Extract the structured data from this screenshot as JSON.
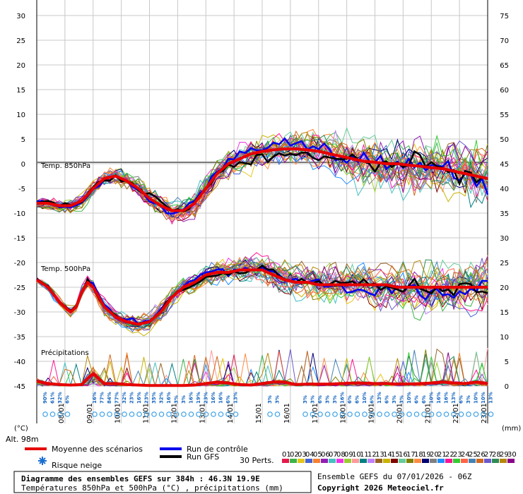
{
  "chart_data": {
    "type": "line",
    "title": "Diagramme des ensembles GEFS sur 384h : 46.3N 19.9E",
    "subtitle": "Températures 850hPa et 500hPa (°C) , précipitations (mm)",
    "source": "Ensemble GEFS du 07/01/2026 - 06Z",
    "copyright": "Copyright 2026 Meteociel.fr",
    "left_axis": {
      "label": "(°C)",
      "range": [
        -45,
        30
      ],
      "ticks": [
        "30",
        "25",
        "20",
        "15",
        "10",
        "5",
        "0",
        "-5",
        "-10",
        "-15",
        "-20",
        "-25",
        "-30",
        "-35",
        "-40",
        "-45"
      ]
    },
    "right_axis": {
      "label": "(mm)",
      "range": [
        0,
        75
      ],
      "ticks": [
        "75",
        "70",
        "65",
        "60",
        "55",
        "50",
        "45",
        "40",
        "35",
        "30",
        "25",
        "20",
        "15",
        "10",
        "5",
        "0"
      ]
    },
    "altitude": "Alt. 98m",
    "x_labels": [
      "08/01",
      "09/01",
      "10/01",
      "11/01",
      "12/01",
      "13/01",
      "14/01",
      "15/01",
      "16/01",
      "17/01",
      "18/01",
      "19/01",
      "20/01",
      "21/01",
      "22/01",
      "23/01"
    ],
    "panel_labels": {
      "t850": "Temp. 850hPa",
      "t500": "Temp. 500hPa",
      "precip": "Précipitations"
    },
    "t850_mean": [
      [
        0,
        -8
      ],
      [
        4,
        -8
      ],
      [
        8,
        -8.5
      ],
      [
        12,
        -8.5
      ],
      [
        16,
        -7.5
      ],
      [
        20,
        -5
      ],
      [
        24,
        -3
      ],
      [
        28,
        -2.5
      ],
      [
        32,
        -3.5
      ],
      [
        36,
        -5
      ],
      [
        40,
        -7
      ],
      [
        44,
        -8.5
      ],
      [
        48,
        -9.5
      ],
      [
        52,
        -9.5
      ],
      [
        56,
        -8
      ],
      [
        60,
        -5
      ],
      [
        64,
        -2
      ],
      [
        68,
        0
      ],
      [
        72,
        1
      ],
      [
        76,
        2
      ],
      [
        80,
        2.5
      ],
      [
        84,
        2.8
      ],
      [
        88,
        3
      ],
      [
        92,
        3
      ],
      [
        96,
        2.8
      ],
      [
        100,
        2.5
      ],
      [
        104,
        2
      ],
      [
        108,
        1.5
      ],
      [
        112,
        1
      ],
      [
        116,
        0.5
      ],
      [
        120,
        0.3
      ],
      [
        124,
        0
      ],
      [
        128,
        0
      ],
      [
        132,
        -0.3
      ],
      [
        136,
        -0.5
      ],
      [
        140,
        -0.8
      ],
      [
        144,
        -1
      ],
      [
        148,
        -1.5
      ],
      [
        152,
        -2
      ],
      [
        156,
        -2.5
      ],
      [
        160,
        -3
      ]
    ],
    "t500_mean": [
      [
        0,
        -23.5
      ],
      [
        4,
        -25
      ],
      [
        8,
        -28
      ],
      [
        12,
        -30
      ],
      [
        14,
        -29
      ],
      [
        16,
        -26
      ],
      [
        18,
        -24
      ],
      [
        20,
        -25
      ],
      [
        24,
        -29
      ],
      [
        28,
        -31
      ],
      [
        32,
        -32
      ],
      [
        36,
        -32.5
      ],
      [
        40,
        -32
      ],
      [
        44,
        -30
      ],
      [
        48,
        -27
      ],
      [
        52,
        -25
      ],
      [
        56,
        -24
      ],
      [
        60,
        -22.5
      ],
      [
        64,
        -22
      ],
      [
        68,
        -22
      ],
      [
        72,
        -21.5
      ],
      [
        76,
        -21.5
      ],
      [
        80,
        -21.5
      ],
      [
        84,
        -22.5
      ],
      [
        88,
        -23.5
      ],
      [
        92,
        -24
      ],
      [
        96,
        -24
      ],
      [
        100,
        -24.5
      ],
      [
        104,
        -24.5
      ],
      [
        108,
        -24.5
      ],
      [
        112,
        -24.5
      ],
      [
        116,
        -24.5
      ],
      [
        120,
        -24.5
      ],
      [
        124,
        -24.5
      ],
      [
        128,
        -25
      ],
      [
        132,
        -25
      ],
      [
        136,
        -25
      ],
      [
        140,
        -25
      ],
      [
        144,
        -25
      ],
      [
        148,
        -25
      ],
      [
        152,
        -25
      ],
      [
        156,
        -25
      ],
      [
        160,
        -25
      ]
    ],
    "precip_mean": [
      [
        0,
        1
      ],
      [
        4,
        0.5
      ],
      [
        8,
        0.3
      ],
      [
        12,
        0.2
      ],
      [
        16,
        0.3
      ],
      [
        18,
        1.5
      ],
      [
        20,
        2.5
      ],
      [
        22,
        1.5
      ],
      [
        24,
        0.5
      ],
      [
        28,
        0.5
      ],
      [
        32,
        0.3
      ],
      [
        36,
        0.2
      ],
      [
        40,
        0.1
      ],
      [
        44,
        0.1
      ],
      [
        48,
        0.1
      ],
      [
        52,
        0.1
      ],
      [
        56,
        0.2
      ],
      [
        60,
        0.5
      ],
      [
        64,
        0.8
      ],
      [
        68,
        0.6
      ],
      [
        72,
        0.3
      ],
      [
        76,
        0.2
      ],
      [
        80,
        0.5
      ],
      [
        84,
        0.8
      ],
      [
        88,
        0.8
      ],
      [
        92,
        0.3
      ],
      [
        96,
        0.4
      ],
      [
        100,
        0.4
      ],
      [
        104,
        0.4
      ],
      [
        108,
        0.5
      ],
      [
        112,
        0.6
      ],
      [
        116,
        0.6
      ],
      [
        120,
        0.5
      ],
      [
        124,
        0.5
      ],
      [
        128,
        0.4
      ],
      [
        132,
        0.4
      ],
      [
        136,
        0.5
      ],
      [
        140,
        0.6
      ],
      [
        144,
        0.8
      ],
      [
        148,
        0.6
      ],
      [
        152,
        0.5
      ],
      [
        156,
        0.8
      ],
      [
        160,
        0.5
      ]
    ],
    "snow_risk": [
      [
        "90%",
        "61%",
        "32%",
        "6%"
      ],
      [
        "16%",
        "77%",
        "84%",
        "77%",
        "32%",
        "23%",
        "16%",
        "23%",
        "35%",
        "32%",
        "16%",
        "3%",
        "3%",
        "16%",
        "19%",
        "23%",
        "16%",
        "16%",
        "6%",
        "13%"
      ],
      [
        "3%",
        "3%"
      ],
      [
        "3%",
        "3%",
        "6%",
        "3%",
        "3%",
        "16%",
        "6%",
        "6%",
        "10%",
        "6%",
        "13%",
        "6%",
        "3%",
        "3%",
        "10%",
        "6%",
        "6%",
        "10%",
        "16%",
        "16%",
        "13%",
        "6%",
        "3%",
        "10%",
        "10%",
        "13%"
      ]
    ],
    "legend": {
      "mean": "Moyenne des scénarios",
      "control": "Run de contrôle",
      "gfs": "Run GFS",
      "snow": "Risque neige",
      "perts": "30 Perts."
    },
    "perturbations": [
      "01",
      "02",
      "03",
      "04",
      "05",
      "06",
      "07",
      "08",
      "09",
      "10",
      "11",
      "12",
      "13",
      "14",
      "15",
      "16",
      "17",
      "18",
      "19",
      "20",
      "21",
      "22",
      "23",
      "24",
      "25",
      "26",
      "27",
      "28",
      "29",
      "30"
    ],
    "pert_colors": [
      "#e6194b",
      "#3cb44b",
      "#e6c619",
      "#4363d8",
      "#f58231",
      "#911eb4",
      "#46c0c0",
      "#f032e6",
      "#9acd32",
      "#ff9999",
      "#008080",
      "#c080ff",
      "#9a6324",
      "#c8b400",
      "#800000",
      "#66cc99",
      "#808000",
      "#ff8c42",
      "#000075",
      "#808080",
      "#1e90ff",
      "#ff1493",
      "#32cd32",
      "#ff6347",
      "#4682b4",
      "#d2691e",
      "#6a5acd",
      "#2e8b57",
      "#b8860b",
      "#8b008b"
    ]
  }
}
